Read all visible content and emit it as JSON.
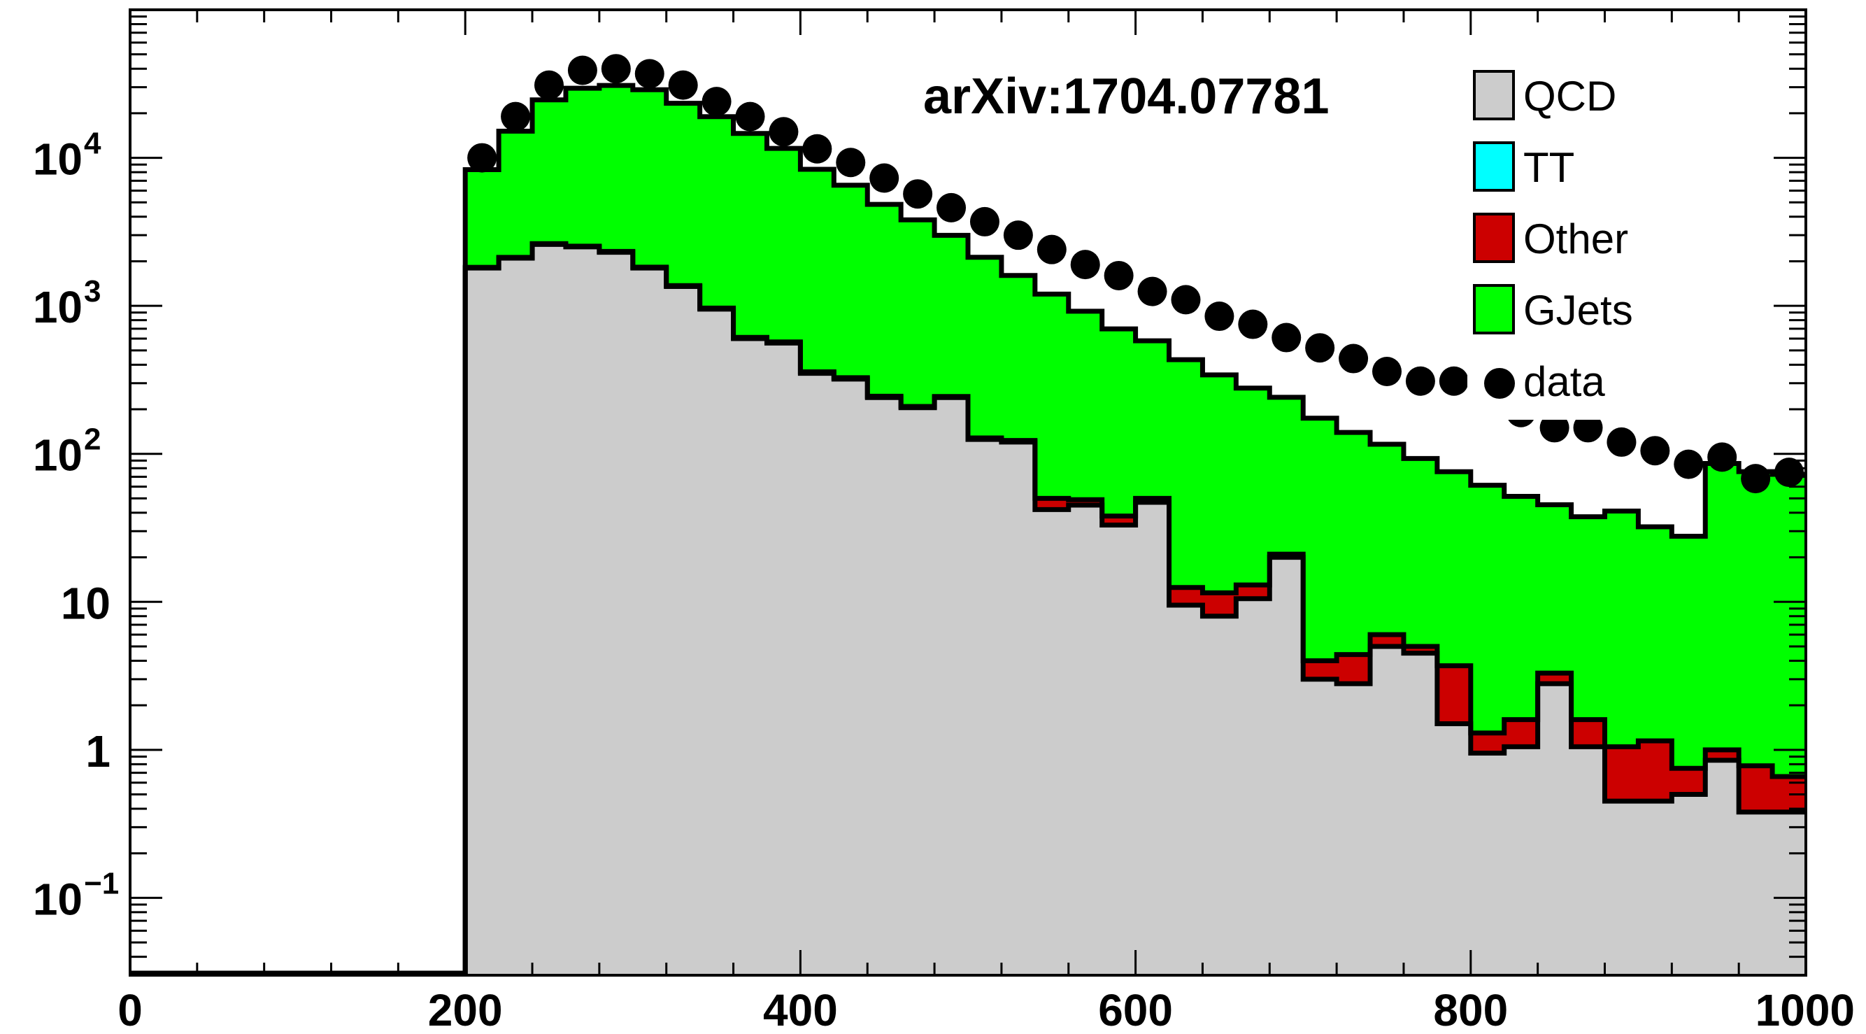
{
  "chart_data": {
    "type": "bar",
    "stacked": true,
    "log_y": true,
    "annotation": "arXiv:1704.07781",
    "xlim": [
      0,
      1000
    ],
    "ylim": [
      0.03,
      100000
    ],
    "x_ticks": [
      0,
      200,
      400,
      600,
      800,
      1000
    ],
    "y_ticks": [
      {
        "value": 0.1,
        "label": "10",
        "sup": "−1"
      },
      {
        "value": 1,
        "label": "1",
        "sup": ""
      },
      {
        "value": 10,
        "label": "10",
        "sup": ""
      },
      {
        "value": 100,
        "label": "10",
        "sup": "2"
      },
      {
        "value": 1000,
        "label": "10",
        "sup": "3"
      },
      {
        "value": 10000,
        "label": "10",
        "sup": "4"
      }
    ],
    "bin_edges_start": 200,
    "bin_width": 20,
    "legend": {
      "placement": "top-right",
      "entries": [
        {
          "name": "QCD",
          "color": "#cccccc",
          "kind": "box"
        },
        {
          "name": "TT",
          "color": "#00ffff",
          "kind": "box"
        },
        {
          "name": "Other",
          "color": "#cc0000",
          "kind": "box"
        },
        {
          "name": "GJets",
          "color": "#00ff00",
          "kind": "box"
        },
        {
          "name": "data",
          "color": "#000000",
          "kind": "marker"
        }
      ]
    },
    "series": [
      {
        "name": "QCD",
        "color": "#cccccc",
        "values": [
          1800,
          2100,
          2600,
          2500,
          2300,
          1800,
          1350,
          950,
          600,
          560,
          350,
          320,
          240,
          205,
          240,
          125,
          120,
          42,
          45,
          33,
          47,
          9.5,
          8,
          10.5,
          20,
          3,
          2.8,
          5,
          4.5,
          1.5,
          0.95,
          1.05,
          2.8,
          1.05,
          0.45,
          0.45,
          0.5,
          0.85,
          0.38,
          0.38
        ]
      },
      {
        "name": "TT",
        "color": "#00ffff",
        "values": [
          0,
          0,
          0,
          0,
          0,
          0,
          0,
          0,
          0,
          0,
          0,
          0,
          0,
          0,
          0,
          0,
          0,
          0,
          0,
          0,
          0,
          0,
          0,
          0,
          0,
          0,
          0,
          0,
          0,
          0,
          0,
          0,
          0,
          0,
          0,
          0,
          0,
          0,
          0,
          0
        ]
      },
      {
        "name": "Other",
        "color": "#cc0000",
        "values": [
          20,
          25,
          30,
          30,
          30,
          25,
          20,
          15,
          12,
          10,
          8,
          7,
          5,
          4,
          4,
          3,
          3,
          8,
          4,
          5,
          3,
          3,
          3.5,
          2.5,
          1,
          1,
          1.6,
          1,
          0.5,
          2.2,
          0.35,
          0.55,
          0.5,
          0.55,
          0.6,
          0.7,
          0.25,
          0.15,
          0.4,
          0.28
        ]
      },
      {
        "name": "GJets",
        "color": "#00ff00",
        "values": [
          6500,
          13000,
          22000,
          27000,
          28500,
          27000,
          22000,
          18000,
          14000,
          11000,
          8000,
          6200,
          4600,
          3600,
          2750,
          2000,
          1480,
          1150,
          870,
          660,
          530,
          420,
          330,
          265,
          220,
          170,
          135,
          110,
          88,
          72,
          60,
          50,
          42,
          36,
          40,
          31,
          27,
          85,
          75,
          72
        ]
      },
      {
        "name": "data",
        "color": "#000000",
        "kind": "points",
        "x": [
          210,
          230,
          250,
          270,
          290,
          310,
          330,
          350,
          370,
          390,
          410,
          430,
          450,
          470,
          490,
          510,
          530,
          550,
          570,
          590,
          610,
          630,
          650,
          670,
          690,
          710,
          730,
          750,
          770,
          790,
          810,
          830,
          850,
          870,
          890,
          910,
          930,
          950,
          970,
          990
        ],
        "values": [
          10000,
          19000,
          31000,
          39000,
          40000,
          37000,
          31000,
          24000,
          19000,
          15000,
          11500,
          9300,
          7300,
          5700,
          4600,
          3700,
          3000,
          2400,
          1900,
          1600,
          1250,
          1100,
          850,
          750,
          610,
          520,
          440,
          360,
          310,
          310,
          230,
          190,
          150,
          150,
          120,
          105,
          85,
          95,
          68,
          75
        ]
      }
    ]
  }
}
